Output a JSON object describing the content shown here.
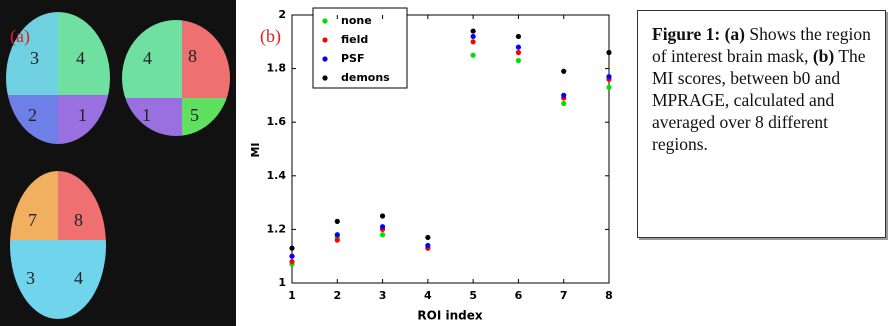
{
  "panel_a": {
    "label": "(a)",
    "images": [
      {
        "labels": [
          "3",
          "4",
          "2",
          "1"
        ]
      },
      {
        "labels": [
          "4",
          "8",
          "1",
          "5"
        ]
      },
      {
        "labels": [
          "7",
          "8",
          "3",
          "4"
        ]
      }
    ]
  },
  "chart_data": {
    "type": "scatter",
    "panel_label": "(b)",
    "x_label": "ROI index",
    "y_label": "MI",
    "x": [
      1,
      2,
      3,
      4,
      5,
      6,
      7,
      8
    ],
    "series": [
      {
        "name": "none",
        "color": "#00e000",
        "values": [
          1.07,
          1.17,
          1.18,
          1.13,
          1.85,
          1.83,
          1.67,
          1.73
        ]
      },
      {
        "name": "field",
        "color": "#ff0000",
        "values": [
          1.08,
          1.16,
          1.2,
          1.13,
          1.9,
          1.86,
          1.69,
          1.76
        ]
      },
      {
        "name": "PSF",
        "color": "#0000ff",
        "values": [
          1.1,
          1.18,
          1.21,
          1.14,
          1.92,
          1.88,
          1.7,
          1.77
        ]
      },
      {
        "name": "demons",
        "color": "#000000",
        "values": [
          1.13,
          1.23,
          1.25,
          1.17,
          1.94,
          1.92,
          1.79,
          1.86
        ]
      }
    ],
    "xlim": [
      1,
      8
    ],
    "xticks": [
      1,
      2,
      3,
      4,
      5,
      6,
      7,
      8
    ],
    "ylim": [
      1,
      2
    ],
    "yticks": [
      1,
      1.2,
      1.4,
      1.6,
      1.8,
      2
    ],
    "grid": false,
    "legend": "upper left"
  },
  "caption": {
    "figure": "Figure 1:",
    "a": "(a)",
    "a_text": "Shows the region of interest brain mask,",
    "b": "(b)",
    "b_text": "The MI scores, between b0 and MPRAGE, calculated and averaged over 8 different regions."
  }
}
